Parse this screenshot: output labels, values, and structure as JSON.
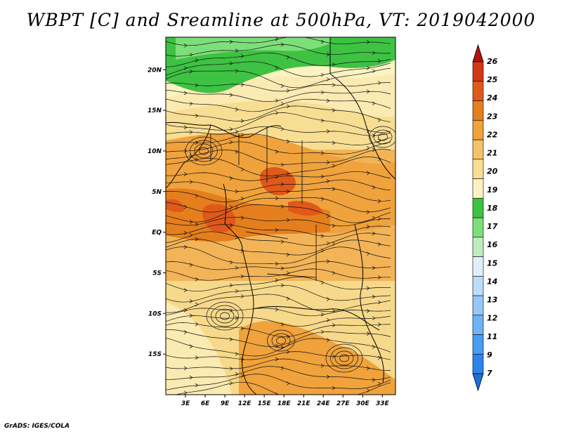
{
  "title": "WBPT [C] and Sreamline at 500hPa, VT: 2019042000",
  "credit": "GrADS: IGES/COLA",
  "map": {
    "lat_labels": [
      "20N",
      "15N",
      "10N",
      "5N",
      "EQ",
      "5S",
      "10S",
      "15S"
    ],
    "lon_labels": [
      "3E",
      "6E",
      "9E",
      "12E",
      "15E",
      "18E",
      "21E",
      "24E",
      "27E",
      "30E",
      "33E"
    ],
    "lat_range": [
      -20,
      24
    ],
    "lon_range": [
      0,
      35
    ]
  },
  "colorbar": {
    "labels": [
      "7",
      "9",
      "11",
      "12",
      "13",
      "14",
      "15",
      "16",
      "17",
      "18",
      "19",
      "20",
      "21",
      "22",
      "23",
      "24",
      "25",
      "26"
    ],
    "colors": [
      "#1f6fd9",
      "#2b85ea",
      "#4a9cf0",
      "#6fb3f4",
      "#95c8f7",
      "#bcdcfa",
      "#dff0fc",
      "#bfebbf",
      "#7ddf7a",
      "#3ec243",
      "#fbf3c2",
      "#f8de93",
      "#f5c169",
      "#f0a23c",
      "#e57f1e",
      "#e0591b",
      "#d33715",
      "#b0120e"
    ]
  }
}
